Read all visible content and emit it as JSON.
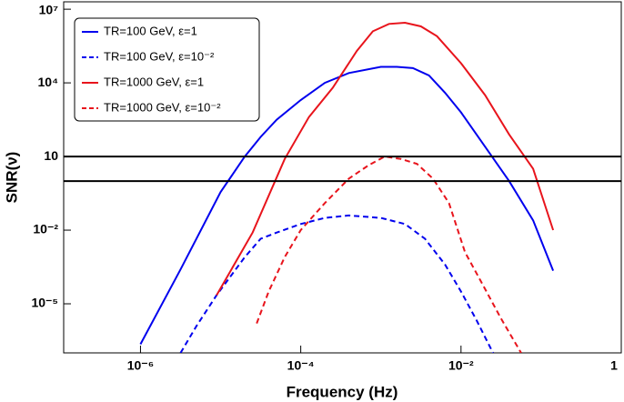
{
  "chart_data": {
    "type": "line",
    "xlabel": "Frequency (Hz)",
    "ylabel": "SNR(ν)",
    "xscale": "log",
    "yscale": "log",
    "xlim": [
      1.1e-07,
      1
    ],
    "ylim": [
      1e-07,
      20000000.0
    ],
    "xticks": [
      {
        "value": 1e-06,
        "label": "10⁻⁶"
      },
      {
        "value": 0.0001,
        "label": "10⁻⁴"
      },
      {
        "value": 0.01,
        "label": "10⁻²"
      },
      1
    ],
    "yticks": [
      {
        "value": 1e-05,
        "label": "10⁻⁵"
      },
      {
        "value": 0.01,
        "label": "10⁻²"
      },
      10,
      {
        "value": 10000.0,
        "label": "10⁴"
      },
      {
        "value": 10000000.0,
        "label": "10⁷"
      }
    ],
    "hlines": [
      10,
      1
    ],
    "legend": "upper left",
    "series": [
      {
        "name": "TR=100 GeV, ε=1",
        "color": "#0000ee",
        "dashed": false,
        "x": [
          1e-06,
          3.16e-06,
          1e-05,
          2e-05,
          3.16e-05,
          5.01e-05,
          0.0001,
          0.0002,
          0.000398,
          0.001,
          0.00158,
          0.00251,
          0.00398,
          0.00631,
          0.01,
          0.02,
          0.0398,
          0.0794,
          0.141
        ],
        "values": [
          2.24e-07,
          0.000251,
          0.355,
          10,
          63.1,
          316,
          2000,
          10000.0,
          25100.0,
          44700.0,
          44700.0,
          39800.0,
          20000.0,
          3980,
          631,
          25.1,
          1,
          0.0251,
          0.000224
        ]
      },
      {
        "name": "TR=100 GeV, ε=10⁻²",
        "color": "#0000ee",
        "dashed": true,
        "x": [
          3.16e-06,
          5.01e-06,
          8.91e-06,
          2e-05,
          3.16e-05,
          5.01e-05,
          0.0001,
          0.0002,
          0.000398,
          0.001,
          0.002,
          0.00355,
          0.00631,
          0.01,
          0.0158,
          0.0251
        ],
        "values": [
          1e-07,
          1.26e-06,
          2.24e-05,
          0.000794,
          0.00447,
          0.00794,
          0.0178,
          0.0316,
          0.0398,
          0.0316,
          0.0178,
          0.00447,
          0.000398,
          3.16e-05,
          2e-06,
          1e-07
        ]
      },
      {
        "name": "TR=1000 GeV, ε=1",
        "color": "#e8141c",
        "dashed": false,
        "x": [
          8.91e-06,
          2.51e-05,
          6.31e-05,
          0.000126,
          0.000251,
          0.000501,
          0.000794,
          0.00126,
          0.002,
          0.00316,
          0.00501,
          0.01,
          0.02,
          0.0398,
          0.0794,
          0.141
        ],
        "values": [
          2.24e-05,
          0.00794,
          7.94,
          398,
          6310,
          200000.0,
          1260000.0,
          2510000.0,
          2820000.0,
          2000000.0,
          794000.0,
          63100.0,
          3160,
          79.4,
          3.16,
          0.01
        ]
      },
      {
        "name": "TR=1000 GeV, ε=10⁻²",
        "color": "#e8141c",
        "dashed": true,
        "x": [
          2.82e-05,
          3.98e-05,
          6.31e-05,
          0.0001,
          0.0002,
          0.000398,
          0.000708,
          0.00112,
          0.00178,
          0.00282,
          0.00447,
          0.00708,
          0.0112,
          0.0178,
          0.0316,
          0.0562
        ],
        "values": [
          1.58e-06,
          3.16e-05,
          0.000794,
          0.01,
          0.126,
          1.26,
          4.47,
          10,
          7.94,
          5.01,
          1.26,
          0.126,
          0.00126,
          7.94e-05,
          2.51e-06,
          1e-07
        ]
      }
    ]
  }
}
